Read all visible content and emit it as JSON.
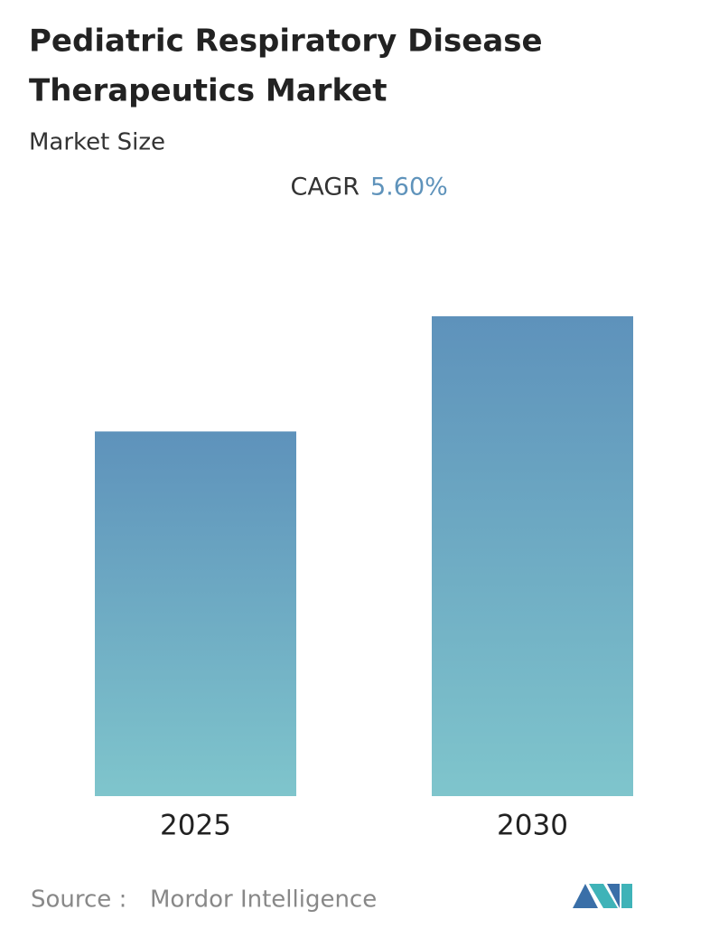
{
  "chart_data": {
    "type": "bar",
    "title": [
      "Pediatric Respiratory Disease",
      "Therapeutics Market"
    ],
    "subtitle": "Market Size",
    "cagr_label": "CAGR",
    "cagr_value": "5.60%",
    "categories": [
      "2025",
      "2030"
    ],
    "values": [
      76,
      100
    ],
    "ylim": [
      0,
      100
    ],
    "gradient": [
      "#5e92bb",
      "#7fc5cc"
    ],
    "source_label": "Source :",
    "source": "Mordor Intelligence"
  }
}
